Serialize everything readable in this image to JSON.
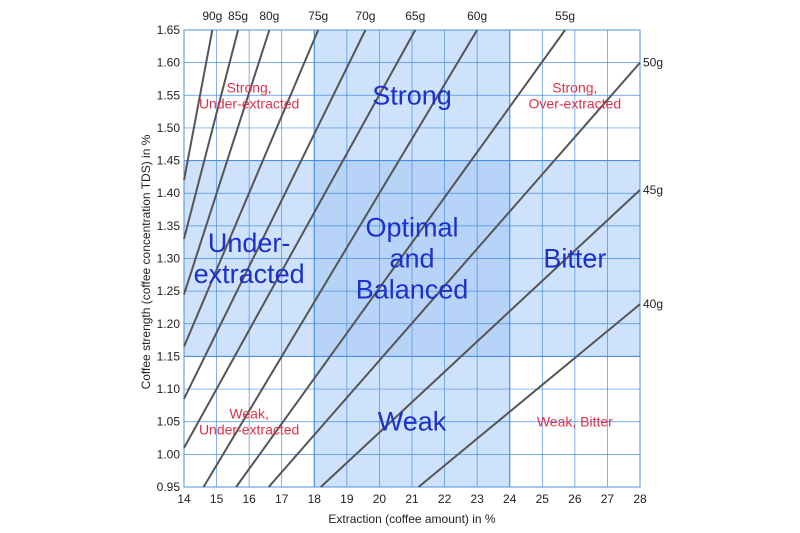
{
  "chart_data": {
    "type": "line",
    "xlabel": "Extraction (coffee amount) in %",
    "ylabel": "Coffee strength (coffee concentration TDS) in %",
    "xlim": [
      14,
      28
    ],
    "ylim": [
      0.95,
      1.65
    ],
    "x_ticks": [
      "14",
      "15",
      "16",
      "17",
      "18",
      "19",
      "20",
      "21",
      "22",
      "23",
      "24",
      "25",
      "26",
      "27",
      "28"
    ],
    "y_ticks": [
      "0.95",
      "1.00",
      "1.05",
      "1.10",
      "1.15",
      "1.20",
      "1.25",
      "1.30",
      "1.35",
      "1.40",
      "1.45",
      "1.50",
      "1.55",
      "1.60",
      "1.65"
    ],
    "grid": true,
    "colors": {
      "grid": "#4a90e2",
      "band": "#cfe2fb",
      "center": "#b7d3f7",
      "line": "#555555",
      "zone_blue": "#1f2fc9",
      "zone_red": "#e0314b"
    },
    "optimal_extraction": [
      18,
      24
    ],
    "optimal_strength": [
      1.15,
      1.45
    ],
    "series": [
      {
        "name": "90g",
        "x": [
          14,
          14.87
        ],
        "y": [
          1.42,
          1.65
        ]
      },
      {
        "name": "85g",
        "x": [
          14,
          15.66
        ],
        "y": [
          1.33,
          1.65
        ]
      },
      {
        "name": "80g",
        "x": [
          14,
          16.62
        ],
        "y": [
          1.245,
          1.65
        ]
      },
      {
        "name": "75g",
        "x": [
          14,
          18.12
        ],
        "y": [
          1.165,
          1.65
        ]
      },
      {
        "name": "70g",
        "x": [
          14,
          19.57
        ],
        "y": [
          1.085,
          1.65
        ]
      },
      {
        "name": "65g",
        "x": [
          14,
          21.1
        ],
        "y": [
          1.01,
          1.65
        ]
      },
      {
        "name": "60g",
        "x": [
          14.6,
          23
        ],
        "y": [
          0.95,
          1.65
        ]
      },
      {
        "name": "55g",
        "x": [
          15.6,
          25.7
        ],
        "y": [
          0.95,
          1.65
        ]
      },
      {
        "name": "50g",
        "x": [
          16.6,
          28
        ],
        "y": [
          0.95,
          1.6
        ]
      },
      {
        "name": "45g",
        "x": [
          18.2,
          28
        ],
        "y": [
          0.95,
          1.405
        ]
      },
      {
        "name": "40g",
        "x": [
          21.2,
          28
        ],
        "y": [
          0.95,
          1.23
        ]
      }
    ],
    "zone_labels": [
      {
        "lines": [
          "Strong,",
          "Under-extracted"
        ],
        "style": "small"
      },
      {
        "lines": [
          "Strong"
        ],
        "style": "big"
      },
      {
        "lines": [
          "Strong,",
          "Over-extracted"
        ],
        "style": "small"
      },
      {
        "lines": [
          "Under-",
          "extracted"
        ],
        "style": "big"
      },
      {
        "lines": [
          "Optimal",
          "and",
          "Balanced"
        ],
        "style": "big"
      },
      {
        "lines": [
          "Bitter"
        ],
        "style": "big"
      },
      {
        "lines": [
          "Weak,",
          "Under-extracted"
        ],
        "style": "small"
      },
      {
        "lines": [
          "Weak"
        ],
        "style": "big"
      },
      {
        "lines": [
          "Weak, Bitter"
        ],
        "style": "small"
      }
    ]
  }
}
